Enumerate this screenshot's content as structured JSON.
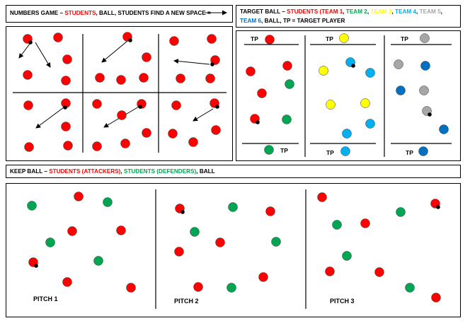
{
  "colors": {
    "red": "#ff0000",
    "green": "#00a651",
    "yellow": "#ffff00",
    "cyan": "#00b0f0",
    "grey": "#a6a6a6",
    "blue": "#0070c0",
    "black": "#000000"
  },
  "numbers_game": {
    "parts": [
      {
        "text": "NUMBERS GAME – ",
        "color": "#000000"
      },
      {
        "text": "STUDENTS",
        "color": "#ff0000"
      },
      {
        "text": ", BALL, STUDENTS FIND A NEW SPACE = ",
        "color": "#000000"
      }
    ]
  },
  "target_ball": {
    "parts": [
      {
        "text": "TARGET BALL – ",
        "color": "#000000"
      },
      {
        "text": "STUDENTS (TEAM 1",
        "color": "#ff0000"
      },
      {
        "text": ", ",
        "color": "#000000"
      },
      {
        "text": "TEAM 2",
        "color": "#00a651"
      },
      {
        "text": ", ",
        "color": "#000000"
      },
      {
        "text": "TEAM 3",
        "color": "#ffff00"
      },
      {
        "text": ", ",
        "color": "#000000"
      },
      {
        "text": "TEAM 4",
        "color": "#00b0f0"
      },
      {
        "text": ", ",
        "color": "#000000"
      },
      {
        "text": "TEAM 5",
        "color": "#a6a6a6"
      },
      {
        "text": ", ",
        "color": "#000000"
      },
      {
        "text": "TEAM 6",
        "color": "#0070c0"
      },
      {
        "text": ", BALL, TP = TARGET PLAYER",
        "color": "#000000"
      }
    ],
    "tp_label": "TP"
  },
  "keep_ball": {
    "parts": [
      {
        "text": "KEEP BALL – ",
        "color": "#000000"
      },
      {
        "text": "STUDENTS (ATTACKERS)",
        "color": "#ff0000"
      },
      {
        "text": ", ",
        "color": "#000000"
      },
      {
        "text": "STUDENTS (DEFENDERS)",
        "color": "#00a651"
      },
      {
        "text": ", BALL",
        "color": "#000000"
      }
    ],
    "pitch_labels": [
      "PITCH 1",
      "PITCH 2",
      "PITCH 3"
    ]
  }
}
